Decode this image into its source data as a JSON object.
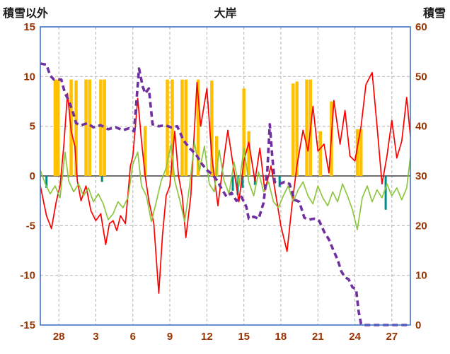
{
  "header": {
    "left_label": "積雪以外",
    "title": "大岸",
    "right_label": "積雪"
  },
  "chart_data": {
    "type": "line",
    "title": "大岸",
    "left_axis": {
      "label": "積雪以外",
      "min": -15,
      "max": 15,
      "ticks": [
        15,
        10,
        5,
        0,
        -5,
        -10,
        -15
      ]
    },
    "right_axis": {
      "label": "積雪",
      "min": 0,
      "max": 60,
      "ticks": [
        60,
        50,
        40,
        30,
        20,
        10,
        0
      ]
    },
    "x_axis": {
      "labels": [
        "28",
        "3",
        "6",
        "9",
        "12",
        "15",
        "18",
        "21",
        "24",
        "27"
      ],
      "positions": [
        1.5,
        4.5,
        7.5,
        10.5,
        13.5,
        16.5,
        19.5,
        22.5,
        25.5,
        28.5
      ],
      "min": 0,
      "max": 30
    },
    "grid": "dashed",
    "legend": "none",
    "colors": {
      "red": "#ff0000",
      "green": "#8dc63f",
      "purple": "#7030a0",
      "orange": "#ffc000",
      "teal": "#008b8b",
      "grid": "#b0b0b0",
      "zero": "#595959",
      "frame": "#4472c4",
      "tick_text": "#993300",
      "title_text": "#1a1a1a"
    },
    "series": [
      {
        "name": "red-line",
        "axis": "left",
        "style": "line",
        "color_key": "red",
        "points": [
          [
            0,
            -1
          ],
          [
            0.5,
            -4
          ],
          [
            0.9,
            -5.3
          ],
          [
            1.3,
            -2.5
          ],
          [
            1.6,
            -1
          ],
          [
            1.9,
            3
          ],
          [
            2.2,
            8.3
          ],
          [
            2.5,
            4.5
          ],
          [
            2.8,
            3
          ],
          [
            3,
            -0.5
          ],
          [
            3.3,
            -2.5
          ],
          [
            3.7,
            -1
          ],
          [
            4.1,
            -3.5
          ],
          [
            4.5,
            -4.5
          ],
          [
            4.9,
            -3.8
          ],
          [
            5.3,
            -6.9
          ],
          [
            5.6,
            -4.8
          ],
          [
            5.9,
            -4.5
          ],
          [
            6.2,
            -5.5
          ],
          [
            6.5,
            -4
          ],
          [
            6.9,
            -4.8
          ],
          [
            7.3,
            1
          ],
          [
            7.5,
            2
          ],
          [
            7.9,
            7.8
          ],
          [
            8.2,
            3.5
          ],
          [
            8.5,
            0
          ],
          [
            8.8,
            -2.5
          ],
          [
            9.2,
            -4.8
          ],
          [
            9.6,
            -11.8
          ],
          [
            9.9,
            -6
          ],
          [
            10.2,
            -2
          ],
          [
            10.5,
            -1
          ],
          [
            10.9,
            4.5
          ],
          [
            11.2,
            0
          ],
          [
            11.5,
            -2
          ],
          [
            11.8,
            -6.2
          ],
          [
            12.2,
            -2
          ],
          [
            12.7,
            9.4
          ],
          [
            13,
            5
          ],
          [
            13.5,
            8.8
          ],
          [
            13.9,
            2
          ],
          [
            14.4,
            -3
          ],
          [
            14.8,
            1
          ],
          [
            15.2,
            4.6
          ],
          [
            15.7,
            0.5
          ],
          [
            16.1,
            -2.6
          ],
          [
            16.5,
            1.5
          ],
          [
            16.9,
            3.4
          ],
          [
            17.4,
            -0.5
          ],
          [
            17.8,
            2.8
          ],
          [
            18.2,
            -1.5
          ],
          [
            18.7,
            1
          ],
          [
            19.1,
            -2
          ],
          [
            19.5,
            -5
          ],
          [
            20,
            -7.6
          ],
          [
            20.4,
            -3
          ],
          [
            20.8,
            1
          ],
          [
            21.3,
            4.6
          ],
          [
            21.7,
            2.5
          ],
          [
            22.1,
            7
          ],
          [
            22.5,
            2.5
          ],
          [
            23,
            3.2
          ],
          [
            23.4,
            0.3
          ],
          [
            23.8,
            7.6
          ],
          [
            24.3,
            3.2
          ],
          [
            24.7,
            6.6
          ],
          [
            25.1,
            2
          ],
          [
            25.5,
            1.5
          ],
          [
            26,
            5
          ],
          [
            26.4,
            9.2
          ],
          [
            26.9,
            10.4
          ],
          [
            27.3,
            5
          ],
          [
            27.7,
            -0.8
          ],
          [
            28.1,
            2
          ],
          [
            28.5,
            5.6
          ],
          [
            28.9,
            1.8
          ],
          [
            29.3,
            3.5
          ],
          [
            29.7,
            7.9
          ],
          [
            30,
            4
          ]
        ]
      },
      {
        "name": "green-line",
        "axis": "left",
        "style": "line",
        "color_key": "green",
        "points": [
          [
            0,
            0.6
          ],
          [
            0.4,
            -0.8
          ],
          [
            0.8,
            -1.8
          ],
          [
            1.2,
            -1
          ],
          [
            1.6,
            -2.2
          ],
          [
            2,
            2.4
          ],
          [
            2.3,
            -0.5
          ],
          [
            2.7,
            -1.6
          ],
          [
            3.1,
            -0.8
          ],
          [
            3.5,
            -2
          ],
          [
            3.9,
            -1.2
          ],
          [
            4.3,
            -2.6
          ],
          [
            4.7,
            -1.8
          ],
          [
            5.1,
            -2.8
          ],
          [
            5.5,
            -4.4
          ],
          [
            5.9,
            -3.8
          ],
          [
            6.3,
            -2.6
          ],
          [
            6.7,
            -3.2
          ],
          [
            7.1,
            -2.2
          ],
          [
            7.5,
            1.2
          ],
          [
            7.9,
            2.4
          ],
          [
            8.2,
            -1
          ],
          [
            8.6,
            -2
          ],
          [
            9,
            -4.6
          ],
          [
            9.4,
            -2.6
          ],
          [
            9.8,
            -0.5
          ],
          [
            10.2,
            0.8
          ],
          [
            10.6,
            3.2
          ],
          [
            10.9,
            -0.5
          ],
          [
            11.3,
            -2.4
          ],
          [
            11.7,
            -4.6
          ],
          [
            12.1,
            -1
          ],
          [
            12.5,
            3.4
          ],
          [
            12.9,
            0.5
          ],
          [
            13.3,
            3
          ],
          [
            13.7,
            -0.8
          ],
          [
            14.1,
            -1.6
          ],
          [
            14.5,
            2.6
          ],
          [
            14.9,
            -0.5
          ],
          [
            15.3,
            -1.8
          ],
          [
            15.7,
            1.4
          ],
          [
            16.1,
            -1
          ],
          [
            16.5,
            2.8
          ],
          [
            16.9,
            -0.6
          ],
          [
            17.3,
            -2
          ],
          [
            17.7,
            0.4
          ],
          [
            18.1,
            -1.6
          ],
          [
            18.5,
            -0.6
          ],
          [
            18.9,
            -2.6
          ],
          [
            19.3,
            -3.2
          ],
          [
            19.7,
            -2
          ],
          [
            20.1,
            -1
          ],
          [
            20.5,
            -2.6
          ],
          [
            20.9,
            -1.4
          ],
          [
            21.3,
            -0.6
          ],
          [
            21.7,
            -2
          ],
          [
            22.1,
            -2.8
          ],
          [
            22.5,
            -1
          ],
          [
            22.9,
            -2.2
          ],
          [
            23.3,
            -3
          ],
          [
            23.7,
            -1.6
          ],
          [
            24.1,
            -2.6
          ],
          [
            24.5,
            -0.8
          ],
          [
            24.9,
            -2
          ],
          [
            25.3,
            -3.4
          ],
          [
            25.7,
            -5.4
          ],
          [
            26.1,
            -2.2
          ],
          [
            26.5,
            -1
          ],
          [
            26.9,
            -2.6
          ],
          [
            27.3,
            -1.4
          ],
          [
            27.7,
            -2.2
          ],
          [
            28.1,
            -0.8
          ],
          [
            28.5,
            -2
          ],
          [
            28.9,
            -1.2
          ],
          [
            29.3,
            -2.4
          ],
          [
            29.7,
            -1.2
          ],
          [
            30,
            1.9
          ]
        ]
      },
      {
        "name": "snow-depth-line",
        "axis": "right",
        "style": "dashed-line",
        "color_key": "purple",
        "points": [
          [
            0,
            52.6
          ],
          [
            0.5,
            52.4
          ],
          [
            0.8,
            50.2
          ],
          [
            1.1,
            49.4
          ],
          [
            1.7,
            49.4
          ],
          [
            2,
            46.6
          ],
          [
            2.3,
            45.2
          ],
          [
            2.6,
            43.2
          ],
          [
            2.9,
            40.6
          ],
          [
            3.3,
            40.2
          ],
          [
            3.8,
            40.6
          ],
          [
            4.3,
            39.8
          ],
          [
            4.9,
            40.2
          ],
          [
            5.5,
            39.4
          ],
          [
            6.1,
            39.8
          ],
          [
            6.7,
            39.2
          ],
          [
            7.2,
            39.6
          ],
          [
            7.6,
            39
          ],
          [
            8,
            51.6
          ],
          [
            8.3,
            48
          ],
          [
            8.5,
            46.6
          ],
          [
            8.8,
            47.6
          ],
          [
            9.1,
            40.4
          ],
          [
            9.6,
            40
          ],
          [
            10.1,
            40.2
          ],
          [
            10.6,
            39.8
          ],
          [
            11.1,
            40
          ],
          [
            11.6,
            37.2
          ],
          [
            12.1,
            35.6
          ],
          [
            12.6,
            34.4
          ],
          [
            13.1,
            32.4
          ],
          [
            13.5,
            31.2
          ],
          [
            13.9,
            30.4
          ],
          [
            14.3,
            29.2
          ],
          [
            14.7,
            27.4
          ],
          [
            15.1,
            25.8
          ],
          [
            15.5,
            26.6
          ],
          [
            15.9,
            25
          ],
          [
            16.3,
            25.8
          ],
          [
            16.7,
            23.8
          ],
          [
            16.9,
            21.4
          ],
          [
            17.3,
            21.8
          ],
          [
            17.7,
            21.4
          ],
          [
            18.1,
            24.6
          ],
          [
            18.4,
            31
          ],
          [
            18.6,
            40.4
          ],
          [
            18.8,
            34
          ],
          [
            19,
            28.8
          ],
          [
            19.4,
            28.4
          ],
          [
            19.8,
            28.8
          ],
          [
            20.2,
            28.4
          ],
          [
            20.6,
            25.2
          ],
          [
            21,
            24.8
          ],
          [
            21.4,
            21.6
          ],
          [
            21.8,
            21.2
          ],
          [
            22.2,
            21.4
          ],
          [
            22.6,
            21
          ],
          [
            23,
            18.8
          ],
          [
            23.4,
            17.2
          ],
          [
            23.8,
            14.8
          ],
          [
            24.1,
            13.2
          ],
          [
            24.4,
            10.8
          ],
          [
            24.7,
            9.6
          ],
          [
            25,
            9.2
          ],
          [
            25.3,
            7.6
          ],
          [
            25.6,
            7.2
          ],
          [
            25.8,
            2.8
          ],
          [
            26,
            0.2
          ],
          [
            26.2,
            0
          ],
          [
            30,
            0
          ]
        ]
      },
      {
        "name": "orange-bars",
        "axis": "left",
        "style": "bar",
        "color_key": "orange",
        "points": [
          [
            1.2,
            9.7
          ],
          [
            1.45,
            9.7
          ],
          [
            2.5,
            9.7
          ],
          [
            2.9,
            9.6
          ],
          [
            3.7,
            9.7
          ],
          [
            4,
            9.7
          ],
          [
            4.9,
            9.7
          ],
          [
            5.2,
            9.7
          ],
          [
            8.5,
            5
          ],
          [
            10.3,
            9.7
          ],
          [
            10.7,
            9.7
          ],
          [
            11.5,
            9.7
          ],
          [
            11.8,
            9.7
          ],
          [
            12.8,
            9.7
          ],
          [
            13.9,
            9.6
          ],
          [
            14.3,
            4
          ],
          [
            16.5,
            8.8
          ],
          [
            16.9,
            4.5
          ],
          [
            20.5,
            9.3
          ],
          [
            20.8,
            9.5
          ],
          [
            21.6,
            9.7
          ],
          [
            21.9,
            9.7
          ],
          [
            22.7,
            4.5
          ],
          [
            23.6,
            7.5
          ],
          [
            25.7,
            4.7
          ],
          [
            26,
            4.7
          ]
        ]
      },
      {
        "name": "teal-bars",
        "axis": "left",
        "style": "bar",
        "color_key": "teal",
        "points": [
          [
            0.5,
            -1.2
          ],
          [
            5,
            -0.6
          ],
          [
            15.6,
            -1.5
          ],
          [
            16,
            -1.9
          ],
          [
            16.4,
            -1.2
          ],
          [
            17.4,
            -0.9
          ],
          [
            19.4,
            -1.1
          ],
          [
            28,
            -3.4
          ]
        ]
      }
    ]
  }
}
